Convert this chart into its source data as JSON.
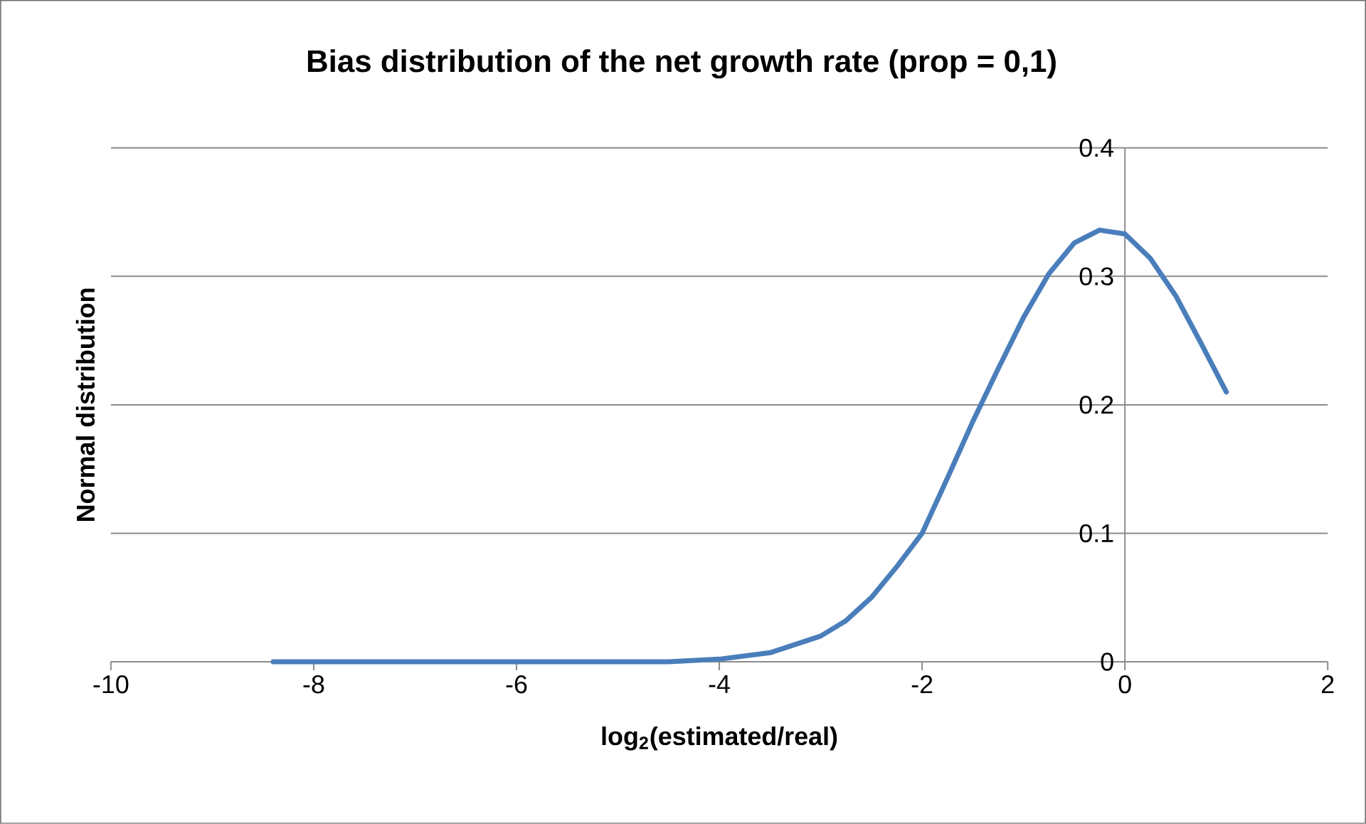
{
  "chart_data": {
    "type": "line",
    "title": "Bias distribution of the net growth rate (prop = 0,1)",
    "xlabel": "log$_{2}$(estimated/real)",
    "ylabel": "Normal distribution",
    "xlim": [
      -10,
      2
    ],
    "xticks": [
      -10,
      -8,
      -6,
      -4,
      -2,
      0,
      2
    ],
    "ylim": [
      0,
      0.4
    ],
    "yticks": [
      0,
      0.1,
      0.2,
      0.3,
      0.4
    ],
    "grid": "y",
    "marker": "none",
    "line_style": "solid",
    "series": [
      {
        "color": "#4a7ebb",
        "x": [
          -8.4,
          -7,
          -6,
          -5,
          -4.5,
          -4,
          -3.5,
          -3,
          -2.75,
          -2.5,
          -2.25,
          -2,
          -1.75,
          -1.5,
          -1.25,
          -1,
          -0.75,
          -0.5,
          -0.25,
          0,
          0.25,
          0.5,
          0.75,
          1
        ],
        "values": [
          0,
          0,
          0,
          0,
          0,
          0.002,
          0.007,
          0.02,
          0.032,
          0.05,
          0.074,
          0.1,
          0.143,
          0.187,
          0.228,
          0.268,
          0.302,
          0.326,
          0.336,
          0.333,
          0.314,
          0.285,
          0.248,
          0.21
        ]
      }
    ]
  }
}
